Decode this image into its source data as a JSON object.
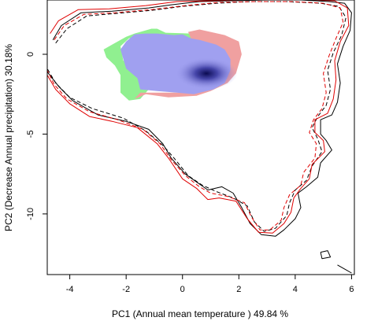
{
  "chart_data": {
    "type": "area",
    "title": "",
    "xlabel": "PC1 (Annual mean temperature ) 49.84 %",
    "ylabel": "PC2 (Decrease Annual precipitation) 30.18%",
    "xlim": [
      -4.8,
      6.1
    ],
    "ylim": [
      -13.8,
      3.4
    ],
    "x_ticks": [
      -4,
      -2,
      0,
      2,
      4,
      6
    ],
    "y_ticks": [
      0,
      -5,
      -10
    ],
    "grid": false,
    "legend": "none",
    "colors": {
      "green": "#90f090",
      "red": "#f0a0a0",
      "blue": "#a0a0f0",
      "density_core": "#0a0a50",
      "contour_black": "#000000",
      "contour_red": "#e00000"
    },
    "series": [
      {
        "kind": "density",
        "color": "#90f090",
        "polygon": [
          [
            -1.1,
            1.6
          ],
          [
            -0.9,
            1.6
          ],
          [
            -0.6,
            1.35
          ],
          [
            0.3,
            1.3
          ],
          [
            0.5,
            0.6
          ],
          [
            0,
            0.2
          ],
          [
            -0.4,
            0.3
          ],
          [
            -0.6,
            0.7
          ],
          [
            -1,
            1.2
          ],
          [
            -1.3,
            1.2
          ],
          [
            -1.9,
            1.0
          ],
          [
            -2.2,
            0.5
          ],
          [
            -2.1,
            -0.4
          ],
          [
            -1.7,
            -0.6
          ],
          [
            -1.5,
            -1.2
          ],
          [
            -1.4,
            -1.6
          ],
          [
            -1.2,
            -2.2
          ],
          [
            -1.5,
            -2.8
          ],
          [
            -1.9,
            -2.9
          ],
          [
            -2.2,
            -2.4
          ],
          [
            -2.2,
            -1.3
          ],
          [
            -2.4,
            -0.7
          ],
          [
            -2.7,
            -0.2
          ],
          [
            -2.8,
            0.3
          ],
          [
            -2.5,
            0.6
          ],
          [
            -2.0,
            1.1
          ],
          [
            -1.7,
            1.3
          ]
        ]
      },
      {
        "kind": "density",
        "color": "#f0a0a0",
        "polygon": [
          [
            0.2,
            1.4
          ],
          [
            0.6,
            1.55
          ],
          [
            1.0,
            1.4
          ],
          [
            1.5,
            1.2
          ],
          [
            2.0,
            0.8
          ],
          [
            2.1,
            0.0
          ],
          [
            1.9,
            -1.2
          ],
          [
            1.6,
            -1.8
          ],
          [
            1.0,
            -2.3
          ],
          [
            0.5,
            -2.6
          ],
          [
            -0.5,
            -2.7
          ],
          [
            -1.3,
            -2.5
          ],
          [
            -1.7,
            -2.8
          ],
          [
            -1.5,
            -2.4
          ],
          [
            -1.0,
            -2.4
          ],
          [
            0.0,
            -2.4
          ],
          [
            0.5,
            -2.2
          ],
          [
            0.3,
            1.0
          ]
        ]
      },
      {
        "kind": "density",
        "color": "#a0a0f0",
        "polygon": [
          [
            -1.7,
            1.25
          ],
          [
            -1.3,
            1.3
          ],
          [
            -0.9,
            1.3
          ],
          [
            -0.3,
            1.2
          ],
          [
            0.0,
            1.25
          ],
          [
            0.3,
            1.0
          ],
          [
            0.6,
            0.9
          ],
          [
            1.2,
            0.6
          ],
          [
            1.5,
            0.3
          ],
          [
            1.7,
            -0.3
          ],
          [
            1.7,
            -1.0
          ],
          [
            1.5,
            -1.8
          ],
          [
            1.1,
            -2.2
          ],
          [
            0.4,
            -2.5
          ],
          [
            -0.2,
            -2.4
          ],
          [
            -0.9,
            -2.3
          ],
          [
            -1.5,
            -2.2
          ],
          [
            -1.6,
            -1.5
          ],
          [
            -2.0,
            -0.9
          ],
          [
            -2.1,
            -0.3
          ],
          [
            -2.2,
            0.3
          ],
          [
            -2.0,
            0.8
          ]
        ]
      },
      {
        "kind": "density-core",
        "color": "#0a0a50",
        "center": [
          0.85,
          -1.2
        ],
        "radius": [
          1.1,
          1.0
        ]
      },
      {
        "kind": "contour",
        "color": "#000000",
        "dash": "solid",
        "points": [
          [
            -4.6,
            0.9
          ],
          [
            -4.3,
            1.8
          ],
          [
            -3.6,
            2.6
          ],
          [
            -2.5,
            2.7
          ],
          [
            -1.2,
            2.9
          ],
          [
            -0.4,
            3.1
          ],
          [
            0.6,
            3.3
          ],
          [
            1.7,
            3.35
          ],
          [
            3.0,
            3.4
          ],
          [
            4.2,
            3.4
          ],
          [
            5.2,
            3.3
          ],
          [
            5.75,
            3.2
          ],
          [
            6.0,
            2.6
          ],
          [
            5.95,
            1.5
          ],
          [
            5.7,
            0.5
          ],
          [
            5.5,
            -0.6
          ],
          [
            5.6,
            -1.8
          ],
          [
            5.5,
            -3.0
          ],
          [
            5.3,
            -3.8
          ],
          [
            4.9,
            -4.1
          ],
          [
            4.9,
            -5.0
          ],
          [
            5.1,
            -5.4
          ],
          [
            5.3,
            -6.0
          ],
          [
            4.9,
            -6.8
          ],
          [
            4.8,
            -7.7
          ],
          [
            4.4,
            -8.3
          ],
          [
            4.1,
            -8.7
          ],
          [
            4.2,
            -9.6
          ],
          [
            4.0,
            -10.3
          ],
          [
            3.6,
            -11.0
          ],
          [
            3.3,
            -11.4
          ],
          [
            2.8,
            -11.3
          ],
          [
            2.4,
            -10.6
          ],
          [
            2.1,
            -9.6
          ],
          [
            1.8,
            -8.7
          ],
          [
            1.4,
            -8.3
          ],
          [
            0.9,
            -8.5
          ],
          [
            0.5,
            -8.0
          ],
          [
            0.1,
            -7.5
          ],
          [
            -0.4,
            -6.5
          ],
          [
            -0.7,
            -5.6
          ],
          [
            -1.2,
            -4.7
          ],
          [
            -2.0,
            -4.2
          ],
          [
            -3.0,
            -3.8
          ],
          [
            -3.9,
            -2.9
          ],
          [
            -4.4,
            -2.0
          ],
          [
            -4.8,
            -1.1
          ]
        ]
      },
      {
        "kind": "contour",
        "color": "#000000",
        "dash": "dashed",
        "points": [
          [
            -4.5,
            0.7
          ],
          [
            -4.1,
            1.6
          ],
          [
            -3.4,
            2.4
          ],
          [
            -2.4,
            2.55
          ],
          [
            -1.1,
            2.75
          ],
          [
            0.0,
            3.0
          ],
          [
            1.2,
            3.2
          ],
          [
            2.4,
            3.3
          ],
          [
            3.7,
            3.3
          ],
          [
            4.9,
            3.2
          ],
          [
            5.55,
            3.0
          ],
          [
            5.8,
            2.3
          ],
          [
            5.65,
            1.2
          ],
          [
            5.35,
            0.1
          ],
          [
            5.15,
            -1.0
          ],
          [
            5.25,
            -2.2
          ],
          [
            5.1,
            -3.2
          ],
          [
            4.8,
            -3.9
          ],
          [
            4.6,
            -4.6
          ],
          [
            4.8,
            -5.3
          ],
          [
            4.95,
            -6.1
          ],
          [
            4.6,
            -7.0
          ],
          [
            4.4,
            -7.9
          ],
          [
            4.0,
            -8.5
          ],
          [
            3.8,
            -9.3
          ],
          [
            3.7,
            -10.1
          ],
          [
            3.3,
            -10.9
          ],
          [
            2.9,
            -11.1
          ],
          [
            2.55,
            -10.5
          ],
          [
            2.3,
            -9.5
          ],
          [
            1.8,
            -9.0
          ],
          [
            1.2,
            -8.6
          ],
          [
            0.7,
            -8.2
          ],
          [
            0.2,
            -7.6
          ],
          [
            -0.3,
            -6.5
          ],
          [
            -0.7,
            -5.7
          ],
          [
            -1.3,
            -4.8
          ],
          [
            -2.1,
            -4.0
          ],
          [
            -3.2,
            -3.4
          ],
          [
            -4.0,
            -2.7
          ],
          [
            -4.5,
            -1.8
          ],
          [
            -4.8,
            -0.9
          ]
        ]
      },
      {
        "kind": "contour",
        "color": "#e00000",
        "dash": "solid",
        "points": [
          [
            -4.7,
            1.3
          ],
          [
            -4.4,
            2.1
          ],
          [
            -3.7,
            2.8
          ],
          [
            -2.6,
            2.85
          ],
          [
            -1.3,
            3.05
          ],
          [
            -0.2,
            3.3
          ],
          [
            0.9,
            3.35
          ],
          [
            2.1,
            3.4
          ],
          [
            3.5,
            3.4
          ],
          [
            4.6,
            3.4
          ],
          [
            5.4,
            3.35
          ],
          [
            5.85,
            2.9
          ],
          [
            5.9,
            1.8
          ],
          [
            5.6,
            0.8
          ],
          [
            5.4,
            -0.4
          ],
          [
            5.45,
            -1.6
          ],
          [
            5.35,
            -2.8
          ],
          [
            5.15,
            -3.7
          ],
          [
            4.7,
            -4.1
          ],
          [
            4.7,
            -4.9
          ],
          [
            5.0,
            -5.4
          ],
          [
            5.05,
            -6.1
          ],
          [
            4.6,
            -6.9
          ],
          [
            4.5,
            -7.8
          ],
          [
            4.2,
            -8.4
          ],
          [
            3.95,
            -9.0
          ],
          [
            3.85,
            -9.9
          ],
          [
            3.6,
            -10.6
          ],
          [
            3.2,
            -11.2
          ],
          [
            2.7,
            -11.15
          ],
          [
            2.3,
            -10.3
          ],
          [
            1.9,
            -9.2
          ],
          [
            1.3,
            -9.0
          ],
          [
            0.9,
            -9.1
          ],
          [
            0.5,
            -8.4
          ],
          [
            0.0,
            -7.8
          ],
          [
            -0.5,
            -6.5
          ],
          [
            -0.9,
            -5.6
          ],
          [
            -1.6,
            -4.6
          ],
          [
            -2.5,
            -4.2
          ],
          [
            -3.3,
            -3.9
          ],
          [
            -4.0,
            -3.1
          ],
          [
            -4.5,
            -2.2
          ],
          [
            -4.8,
            -1.3
          ]
        ]
      },
      {
        "kind": "contour",
        "color": "#e00000",
        "dash": "dashed",
        "points": [
          [
            -4.55,
            0.9
          ],
          [
            -4.2,
            1.8
          ],
          [
            -3.5,
            2.5
          ],
          [
            -2.4,
            2.6
          ],
          [
            -1.1,
            2.8
          ],
          [
            0.1,
            3.05
          ],
          [
            1.3,
            3.25
          ],
          [
            2.6,
            3.3
          ],
          [
            3.9,
            3.3
          ],
          [
            5.0,
            3.2
          ],
          [
            5.6,
            2.9
          ],
          [
            5.7,
            2.0
          ],
          [
            5.45,
            1.0
          ],
          [
            5.2,
            -0.1
          ],
          [
            5.0,
            -1.2
          ],
          [
            5.1,
            -2.4
          ],
          [
            4.95,
            -3.4
          ],
          [
            4.65,
            -4.1
          ],
          [
            4.5,
            -4.9
          ],
          [
            4.75,
            -5.6
          ],
          [
            4.7,
            -6.5
          ],
          [
            4.3,
            -7.4
          ],
          [
            4.2,
            -8.2
          ],
          [
            3.8,
            -8.8
          ],
          [
            3.6,
            -9.6
          ],
          [
            3.5,
            -10.4
          ],
          [
            3.1,
            -11.0
          ],
          [
            2.75,
            -11.0
          ],
          [
            2.45,
            -10.2
          ],
          [
            2.2,
            -9.3
          ],
          [
            1.6,
            -8.9
          ],
          [
            1.0,
            -8.7
          ],
          [
            0.6,
            -8.3
          ],
          [
            0.1,
            -7.6
          ],
          [
            -0.4,
            -6.6
          ],
          [
            -0.8,
            -5.6
          ],
          [
            -1.4,
            -4.7
          ],
          [
            -2.3,
            -4.1
          ],
          [
            -3.3,
            -3.6
          ],
          [
            -4.1,
            -2.8
          ],
          [
            -4.55,
            -1.9
          ],
          [
            -4.8,
            -1.0
          ]
        ]
      },
      {
        "kind": "contour",
        "color": "#000000",
        "dash": "solid",
        "points": [
          [
            4.9,
            -12.4
          ],
          [
            5.15,
            -12.3
          ],
          [
            5.25,
            -12.7
          ],
          [
            4.95,
            -12.8
          ],
          [
            4.9,
            -12.4
          ]
        ]
      },
      {
        "kind": "contour",
        "color": "#000000",
        "dash": "solid",
        "points": [
          [
            5.5,
            -13.2
          ],
          [
            5.8,
            -13.5
          ],
          [
            6.0,
            -13.7
          ]
        ]
      }
    ]
  }
}
